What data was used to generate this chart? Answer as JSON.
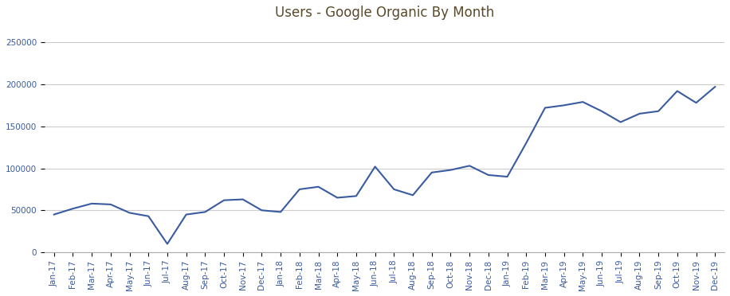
{
  "title": "Users - Google Organic By Month",
  "labels": [
    "Jan-17",
    "Feb-17",
    "Mar-17",
    "Apr-17",
    "May-17",
    "Jun-17",
    "Jul-17",
    "Aug-17",
    "Sep-17",
    "Oct-17",
    "Nov-17",
    "Dec-17",
    "Jan-18",
    "Feb-18",
    "Mar-18",
    "Apr-18",
    "May-18",
    "Jun-18",
    "Jul-18",
    "Aug-18",
    "Sep-18",
    "Oct-18",
    "Nov-18",
    "Dec-18",
    "Jan-19",
    "Feb-19",
    "Mar-19",
    "Apr-19",
    "May-19",
    "Jun-19",
    "Jul-19",
    "Aug-19",
    "Sep-19",
    "Oct-19",
    "Nov-19",
    "Dec-19"
  ],
  "values": [
    45000,
    52000,
    58000,
    57000,
    47000,
    43000,
    10000,
    45000,
    48000,
    62000,
    63000,
    50000,
    48000,
    75000,
    78000,
    65000,
    67000,
    102000,
    75000,
    68000,
    95000,
    98000,
    103000,
    92000,
    90000,
    130000,
    172000,
    175000,
    179000,
    168000,
    155000,
    165000,
    168000,
    192000,
    178000,
    197000
  ],
  "line_color": "#3a5ba0",
  "bg_color": "#ffffff",
  "grid_color": "#cccccc",
  "title_color": "#5a4a2a",
  "tick_color": "#3a5ba0",
  "ylim": [
    0,
    270000
  ],
  "yticks": [
    0,
    50000,
    100000,
    150000,
    200000,
    250000
  ],
  "title_fontsize": 12,
  "tick_fontsize": 7.5,
  "linewidth": 1.5
}
